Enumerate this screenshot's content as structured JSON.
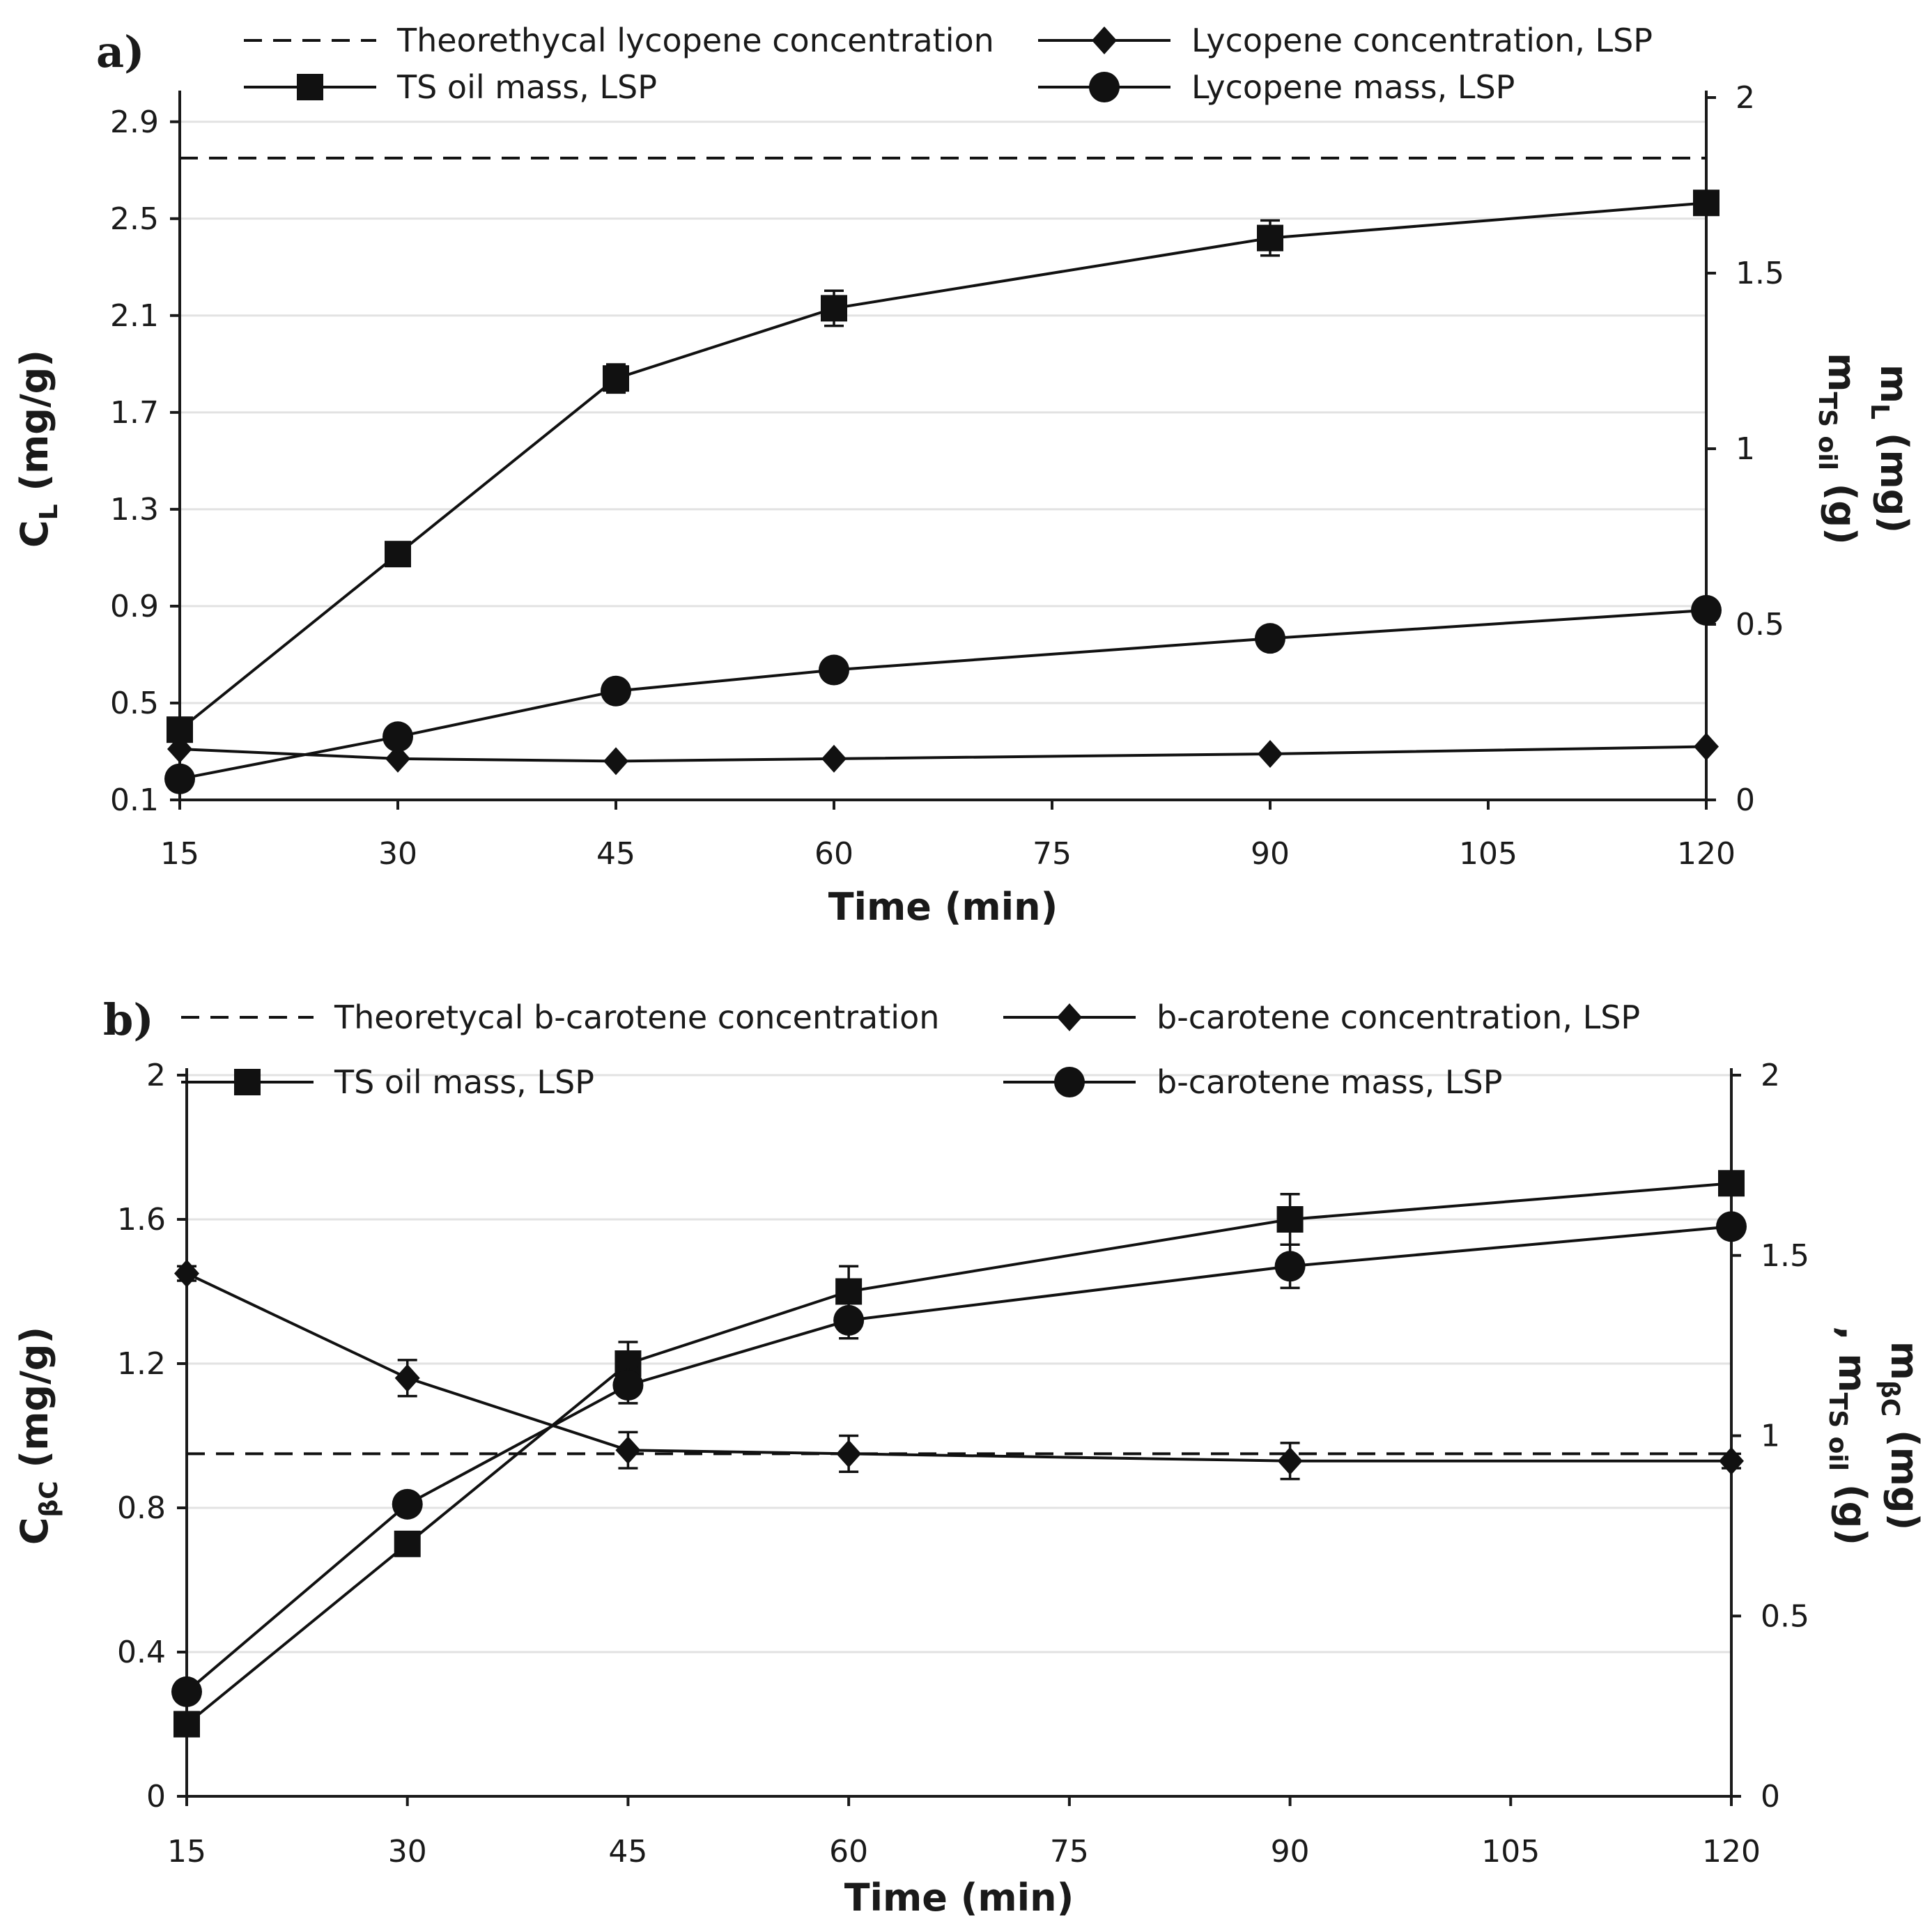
{
  "chart_data": [
    {
      "panel_label": "a)",
      "type": "line",
      "xlabel": "Time (min)",
      "ylabel": "C",
      "ylabel_sub": "L",
      "ylabel_unit": " (mg/g)",
      "y2label_line1": "m",
      "y2label_line1_sub": "L",
      "y2label_line1_unit": " (mg)",
      "y2label_line2": "m",
      "y2label_line2_sub": "TS oil",
      "y2label_line2_unit": " (g)",
      "xlim": [
        15,
        120
      ],
      "xticks": [
        15,
        30,
        45,
        60,
        75,
        90,
        105,
        120
      ],
      "ylim": [
        0.1,
        3.0
      ],
      "yticks": [
        "0.1",
        "0.5",
        "0.9",
        "1.3",
        "1.7",
        "2.1",
        "2.5",
        "2.9"
      ],
      "y2lim": [
        0,
        2
      ],
      "y2ticks": [
        "0",
        "0.5",
        "1",
        "1.5",
        "2"
      ],
      "grid": true,
      "legend_position": "top",
      "series": [
        {
          "name": "Theorethycal lycopene concentration",
          "axis": "left",
          "style": "dashed",
          "marker": "none",
          "x": [
            15,
            120
          ],
          "y": [
            2.75,
            2.75
          ]
        },
        {
          "name": "Lycopene concentration, LSP",
          "axis": "left",
          "style": "solid",
          "marker": "diamond",
          "x": [
            15,
            30,
            45,
            60,
            90,
            120
          ],
          "y": [
            0.31,
            0.27,
            0.26,
            0.27,
            0.29,
            0.32
          ]
        },
        {
          "name": "TS oil mass, LSP",
          "axis": "right",
          "style": "solid",
          "marker": "square",
          "x": [
            15,
            30,
            45,
            60,
            90,
            120
          ],
          "y": [
            0.2,
            0.7,
            1.2,
            1.4,
            1.6,
            1.7
          ],
          "err": [
            0.02,
            0.02,
            0.04,
            0.05,
            0.05,
            0.02
          ]
        },
        {
          "name": "Lycopene mass, LSP",
          "axis": "right",
          "style": "solid",
          "marker": "circle",
          "x": [
            15,
            30,
            45,
            60,
            90,
            120
          ],
          "y": [
            0.06,
            0.18,
            0.31,
            0.37,
            0.46,
            0.54
          ]
        }
      ]
    },
    {
      "panel_label": "b)",
      "type": "line",
      "xlabel": "Time (min)",
      "ylabel": "C",
      "ylabel_sub": "βC",
      "ylabel_unit": " (mg/g)",
      "y2label_line1": "m",
      "y2label_line1_sub": "βC",
      "y2label_line1_unit": " (mg)",
      "y2label_line2": ", m",
      "y2label_line2_sub": "TS oil",
      "y2label_line2_unit": " (g)",
      "xlim": [
        15,
        120
      ],
      "xticks": [
        15,
        30,
        45,
        60,
        75,
        90,
        105,
        120
      ],
      "ylim": [
        0,
        2
      ],
      "yticks": [
        "0",
        "0.4",
        "0.8",
        "1.2",
        "1.6",
        "2"
      ],
      "y2lim": [
        0,
        2
      ],
      "y2ticks": [
        "0",
        "0.5",
        "1",
        "1.5",
        "2"
      ],
      "grid": true,
      "legend_position": "top",
      "series": [
        {
          "name": "Theoretycal b-carotene concentration",
          "axis": "left",
          "style": "dashed",
          "marker": "none",
          "x": [
            15,
            120
          ],
          "y": [
            0.95,
            0.95
          ]
        },
        {
          "name": "b-carotene concentration, LSP",
          "axis": "left",
          "style": "solid",
          "marker": "diamond",
          "x": [
            15,
            30,
            45,
            60,
            90,
            120
          ],
          "y": [
            1.45,
            1.16,
            0.96,
            0.95,
            0.93,
            0.93
          ],
          "err": [
            0.02,
            0.05,
            0.05,
            0.05,
            0.05,
            0.02
          ]
        },
        {
          "name": "TS oil mass, LSP",
          "axis": "right",
          "style": "solid",
          "marker": "square",
          "x": [
            15,
            30,
            45,
            60,
            90,
            120
          ],
          "y": [
            0.2,
            0.7,
            1.2,
            1.4,
            1.6,
            1.7
          ],
          "err": [
            0.02,
            0.02,
            0.06,
            0.07,
            0.07,
            0.02
          ]
        },
        {
          "name": "b-carotene mass, LSP",
          "axis": "right",
          "style": "solid",
          "marker": "circle",
          "x": [
            15,
            30,
            45,
            60,
            90,
            120
          ],
          "y": [
            0.29,
            0.81,
            1.14,
            1.32,
            1.47,
            1.58
          ],
          "err": [
            0.02,
            0.02,
            0.05,
            0.05,
            0.06,
            0.02
          ]
        }
      ]
    }
  ]
}
